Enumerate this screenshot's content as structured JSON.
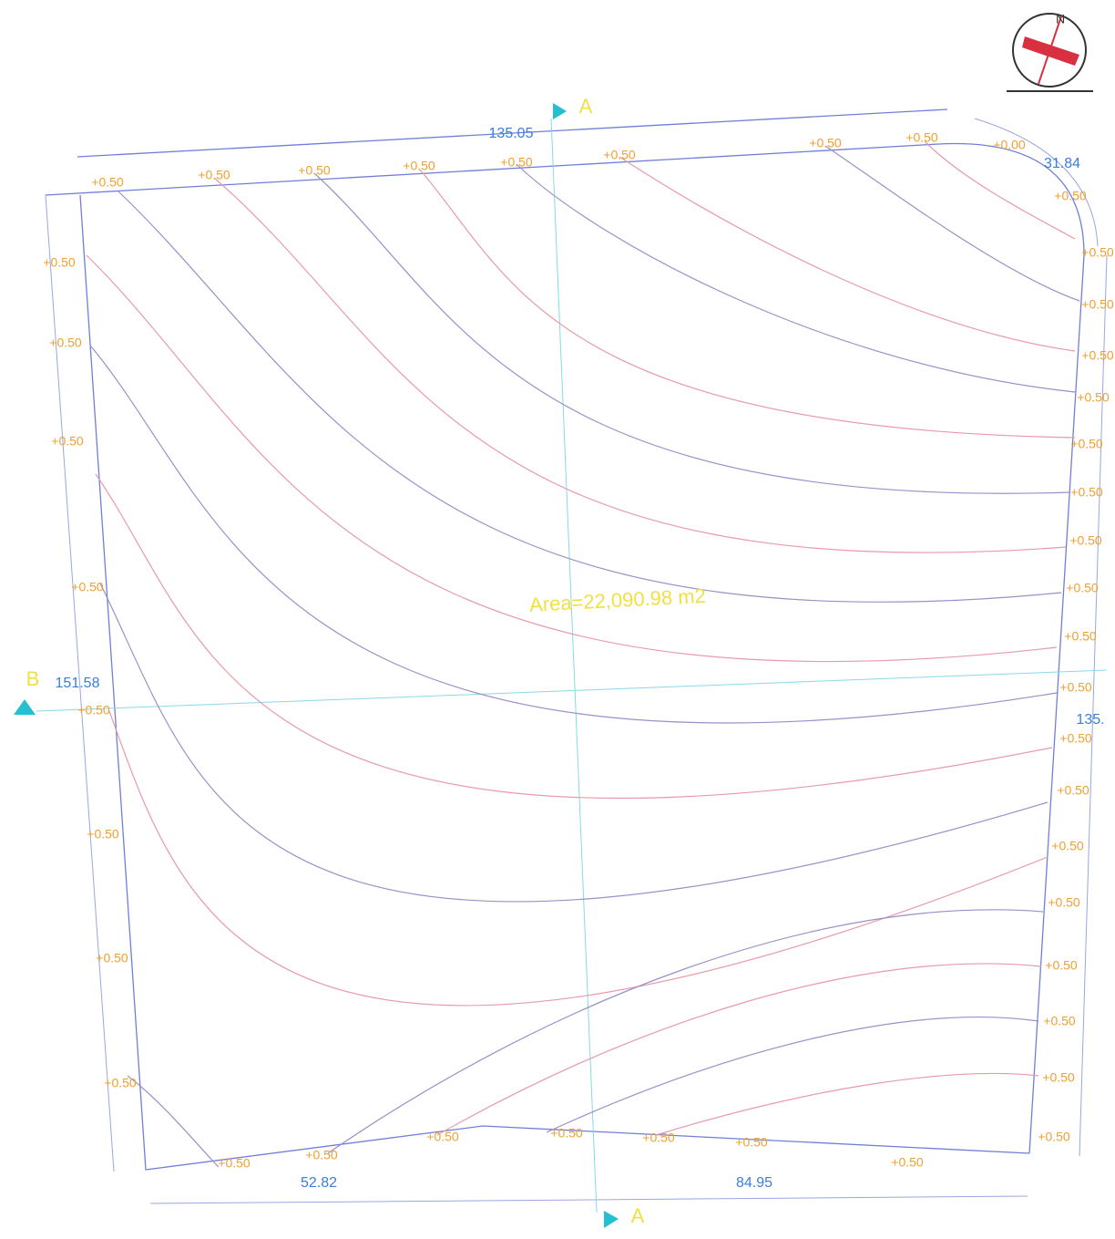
{
  "drawing": {
    "area_label": "Area=22,090.98 m2",
    "north_label": "N",
    "dimensions": [
      "135.05",
      "31.84",
      "151.58",
      "135.",
      "52.82",
      "84.95"
    ],
    "section_marks": [
      "A",
      "A",
      "B"
    ],
    "elevation_labels": [
      "+0.50",
      "+0.50",
      "+0.50",
      "+0.50",
      "+0.50",
      "+0.50",
      "+0.50",
      "+0.50",
      "+0.00",
      "+0.50",
      "+0.50",
      "+0.50",
      "+0.50",
      "+0.50",
      "+0.50",
      "+0.50",
      "+0.50",
      "+0.50",
      "+0.50",
      "+0.50",
      "+0.50",
      "+0.50",
      "+0.50",
      "+0.50",
      "+0.50",
      "+0.50",
      "+0.50",
      "+0.50",
      "+0.50",
      "+0.50",
      "+0.50",
      "+0.50",
      "+0.50",
      "+0.50",
      "+0.50",
      "+0.50",
      "+0.50",
      "+0.50",
      "+0.50",
      "+0.50",
      "+0.50",
      "+0.50",
      "+0.50"
    ]
  }
}
